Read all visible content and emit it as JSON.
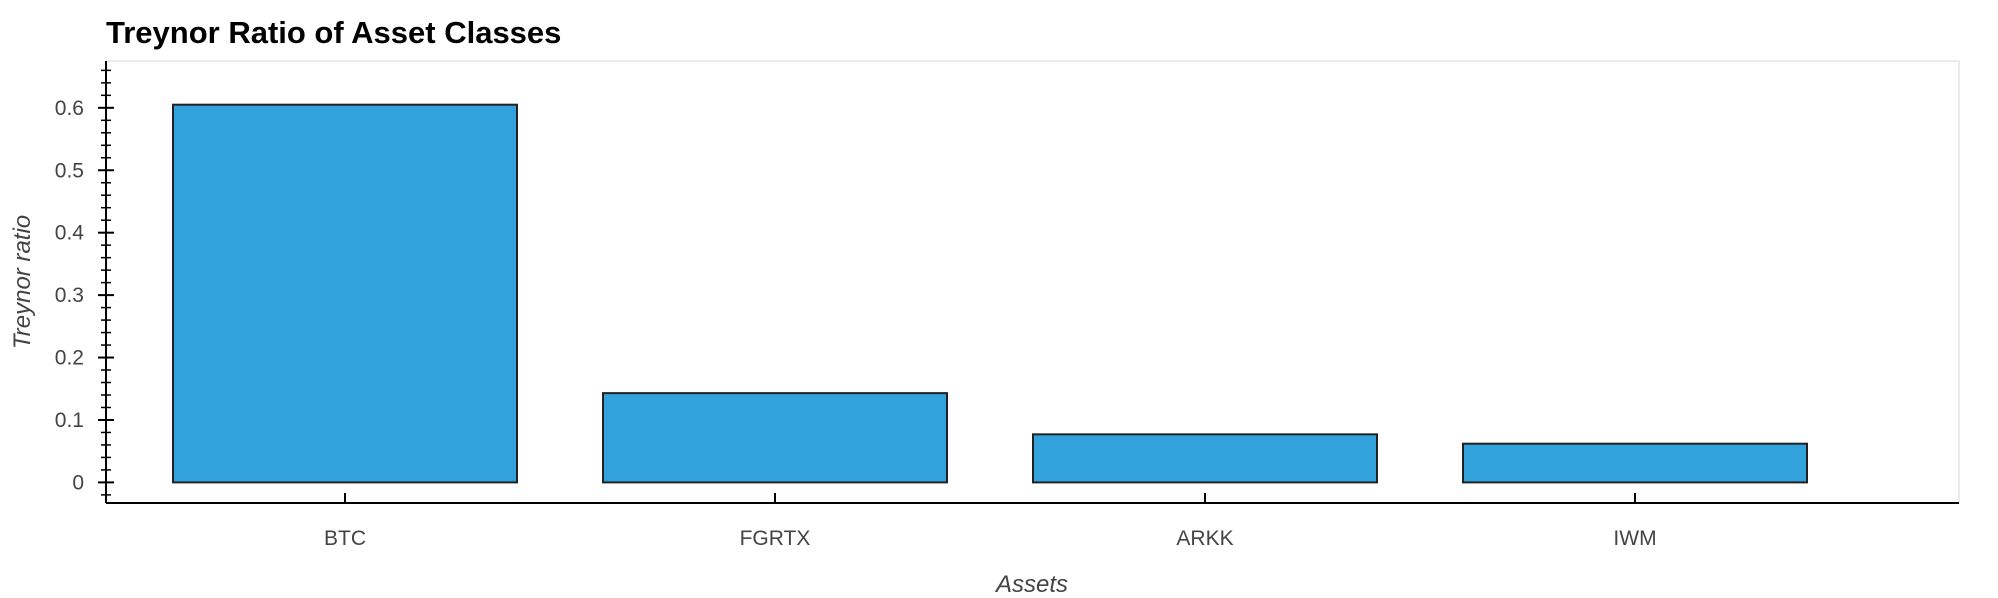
{
  "chart_data": {
    "type": "bar",
    "title": "Treynor Ratio of Asset Classes",
    "xlabel": "Assets",
    "ylabel": "Treynor ratio",
    "categories": [
      "BTC",
      "FGRTX",
      "ARKK",
      "IWM"
    ],
    "values": [
      0.605,
      0.143,
      0.077,
      0.062
    ],
    "yticks": [
      0,
      0.1,
      0.2,
      0.3,
      0.4,
      0.5,
      0.6
    ],
    "ytick_labels": [
      "0",
      "0.1",
      "0.2",
      "0.3",
      "0.4",
      "0.5",
      "0.6"
    ],
    "ylim": [
      -0.033,
      0.675
    ],
    "grid": false,
    "legend": "none",
    "bar_color": "#31a2dc",
    "bar_edge_color": "#222222"
  }
}
